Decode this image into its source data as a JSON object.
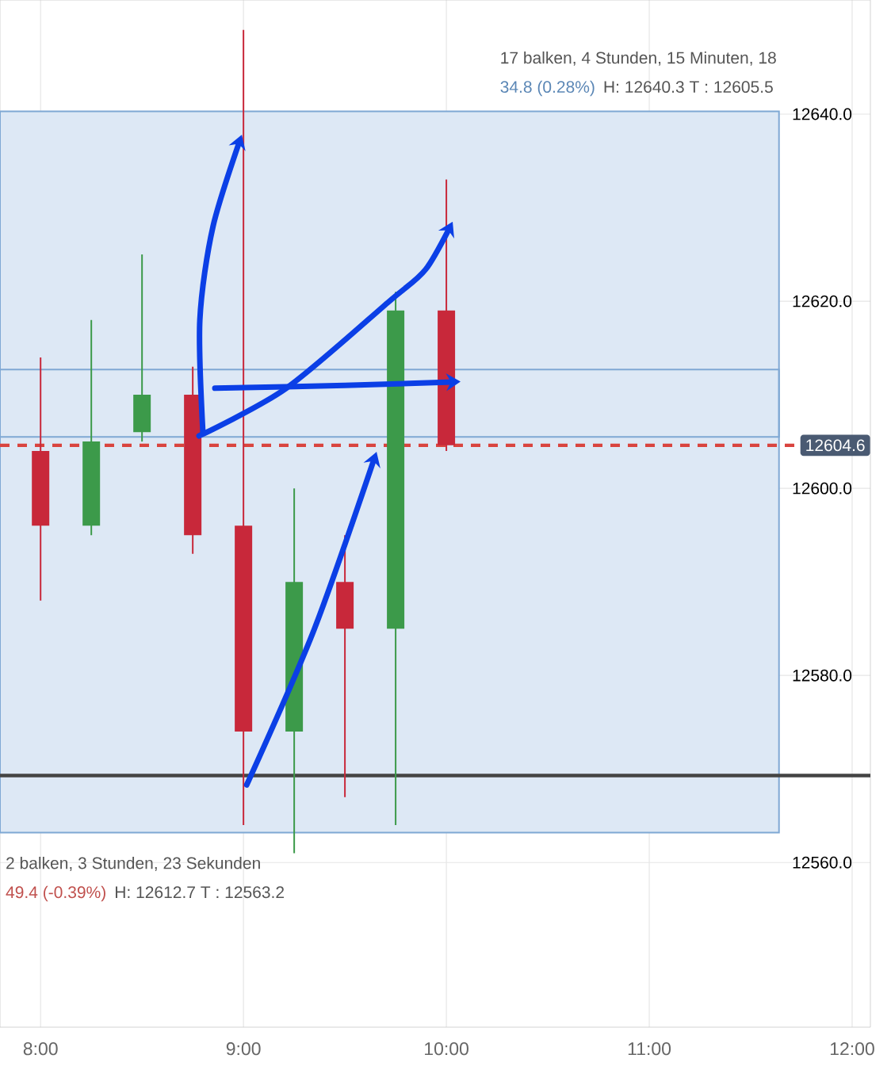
{
  "chart_data": {
    "type": "candlestick",
    "x": [
      8,
      8.25,
      8.5,
      8.75,
      9,
      9.25,
      9.5,
      9.75,
      10
    ],
    "ohlc": [
      [
        12604,
        12614,
        12588,
        12596
      ],
      [
        12596,
        12618,
        12595,
        12605
      ],
      [
        12606,
        12625,
        12605,
        12610
      ],
      [
        12610,
        12613,
        12593,
        12595
      ],
      [
        12596,
        12649,
        12564,
        12574
      ],
      [
        12574,
        12600,
        12561,
        12590
      ],
      [
        12590,
        12595,
        12567,
        12585
      ],
      [
        12585,
        12621,
        12564,
        12619
      ],
      [
        12619,
        12633,
        12604,
        12604.6
      ]
    ],
    "colors": [
      "#c8283a",
      "#3c9a4a",
      "#3c9a4a",
      "#c8283a",
      "#c8283a",
      "#3c9a4a",
      "#c8283a",
      "#3c9a4a",
      "#c8283a"
    ],
    "xlim": [
      7.8,
      12.09
    ],
    "ylim": [
      12542.4,
      12652.2
    ],
    "xticks": [
      {
        "value": 8,
        "label": "8:00"
      },
      {
        "value": 9,
        "label": "9:00"
      },
      {
        "value": 10,
        "label": "10:00"
      },
      {
        "value": 11,
        "label": "11:00"
      },
      {
        "value": 12,
        "label": "12:00"
      }
    ],
    "yticks": [
      {
        "value": 12560,
        "label": "12560.0"
      },
      {
        "value": 12580,
        "label": "12580.0"
      },
      {
        "value": 12600,
        "label": "12600.0"
      },
      {
        "value": 12620,
        "label": "12620.0"
      },
      {
        "value": 12640,
        "label": "12640.0"
      }
    ],
    "grid": true,
    "ref_lines": [
      {
        "axis": "y",
        "value": 12604.6,
        "label": "12604.6",
        "color": "#d9443f",
        "line_style": "dashed"
      },
      {
        "axis": "y",
        "value": 12569.3,
        "color": "#444444",
        "line_style": "solid"
      }
    ],
    "bands": [
      {
        "axis": "y",
        "from": 12605.5,
        "to": 12640.3,
        "color": "#dde8f5"
      },
      {
        "axis": "y",
        "from": 12563.2,
        "to": 12612.7,
        "color": "#dde8f5"
      }
    ],
    "annotations": [
      "17 balken, 4 Stunden, 15 Minuten, 18",
      "34.8 (0.28%)",
      "H: 12640.3 T : 12605.5",
      "2 balken, 3 Stunden, 23 Sekunden",
      "49.4 (-0.39%)",
      "H: 12612.7 T : 12563.2"
    ]
  }
}
